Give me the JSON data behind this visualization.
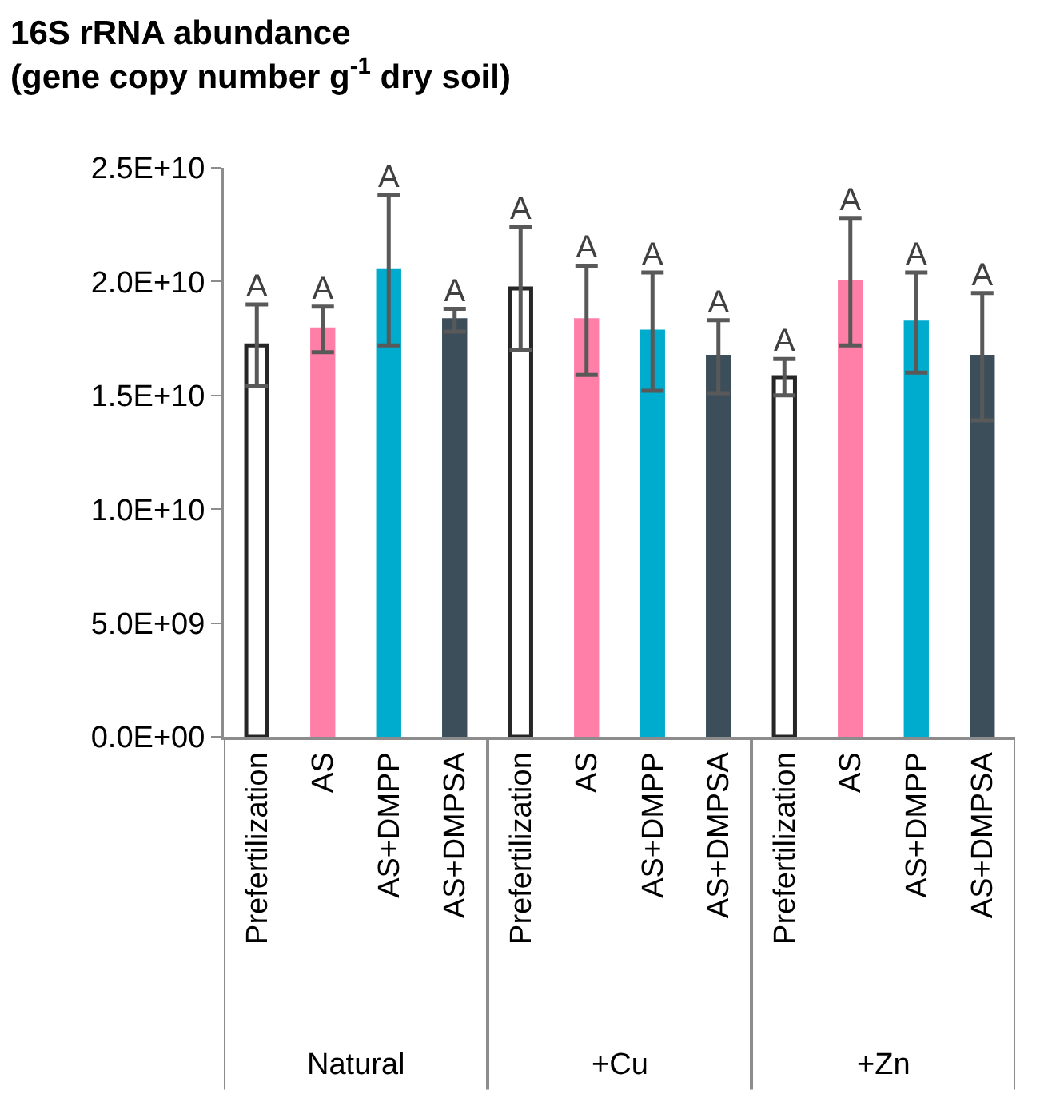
{
  "chart_data": {
    "type": "bar",
    "title": "16S rRNA abundance\n(gene copy number g$^{-1}$ dry soil)",
    "categories": [
      "Prefertilization",
      "AS",
      "AS+DMPP",
      "AS+DMPSA",
      "Prefertilization",
      "AS",
      "AS+DMPP",
      "AS+DMPSA",
      "Prefertilization",
      "AS",
      "AS+DMPP",
      "AS+DMPSA"
    ],
    "values": [
      17200000000,
      17900000000,
      20500000000,
      18300000000,
      19700000000,
      18300000000,
      17800000000,
      16700000000,
      15800000000,
      20000000000,
      18200000000,
      16700000000
    ],
    "errors": [
      1800000000,
      1000000000,
      3300000000,
      500000000,
      2700000000,
      2400000000,
      2600000000,
      1600000000,
      800000000,
      2800000000,
      2200000000,
      2800000000
    ],
    "colors": [
      "#ffffff",
      "#ff7fa8",
      "#00acce",
      "#3c4e5a",
      "#ffffff",
      "#ff7fa8",
      "#00acce",
      "#3c4e5a",
      "#ffffff",
      "#ff7fa8",
      "#00acce",
      "#3c4e5a"
    ],
    "value_labels": [
      "A",
      "A",
      "A",
      "A",
      "A",
      "A",
      "A",
      "A",
      "A",
      "A",
      "A",
      "A"
    ],
    "annotations": [
      "Natural",
      "+Cu",
      "+Zn"
    ],
    "ylim": [
      0,
      25000000000
    ],
    "yticks": [
      {
        "value": 0,
        "label": "0.0E+00"
      },
      {
        "value": 5000000000,
        "label": "5.0E+09"
      },
      {
        "value": 10000000000,
        "label": "1.0E+10"
      },
      {
        "value": 15000000000,
        "label": "1.5E+10"
      },
      {
        "value": 20000000000,
        "label": "2.0E+10"
      },
      {
        "value": 25000000000,
        "label": "2.5E+10"
      }
    ],
    "legend": false
  }
}
